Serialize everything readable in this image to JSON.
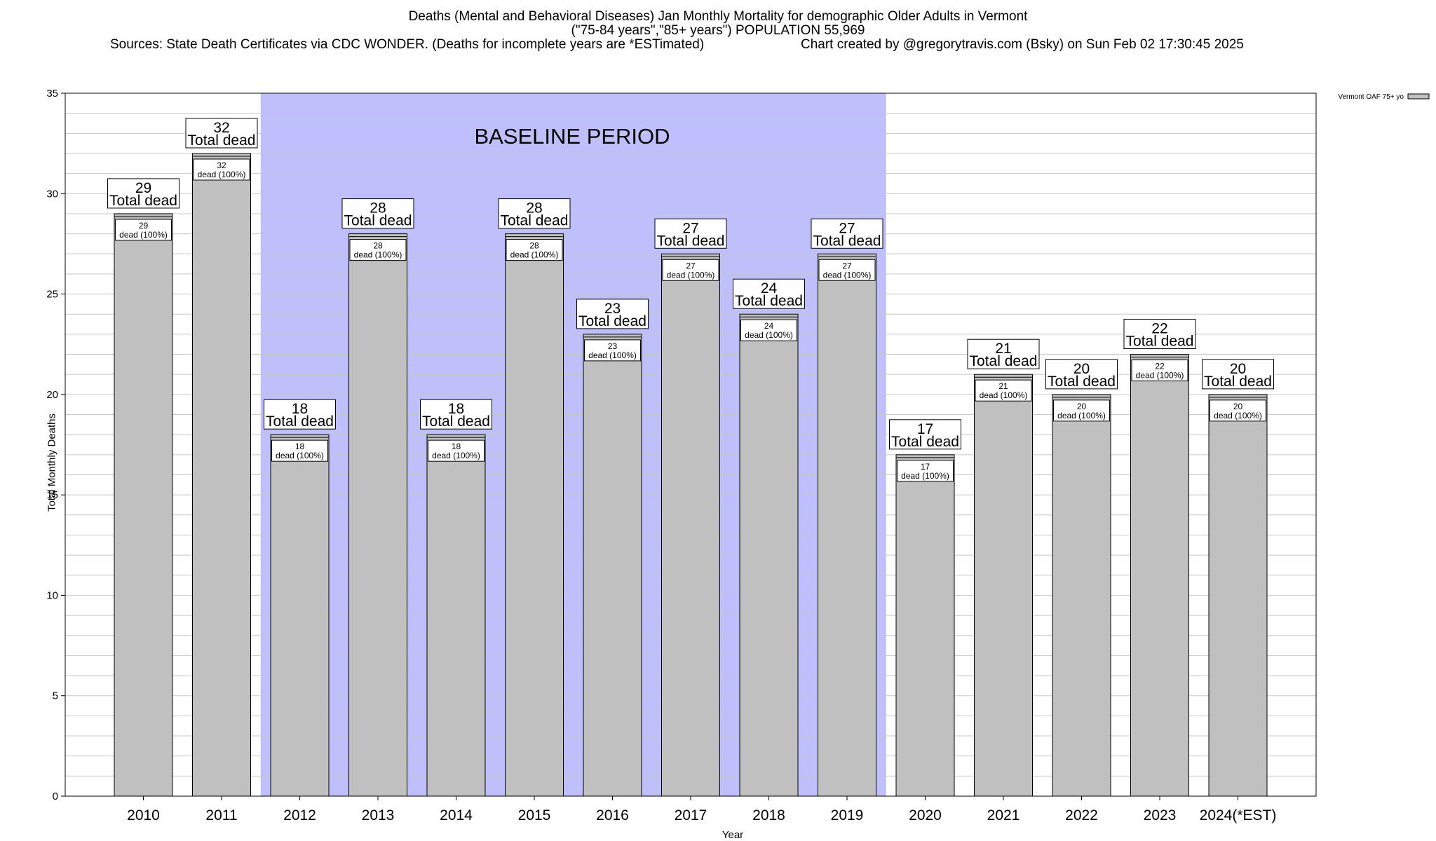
{
  "title": {
    "line1": "Deaths (Mental and Behavioral Diseases) Jan Monthly Mortality for demographic Older Adults in Vermont",
    "line2": "(\"75-84 years\",\"85+ years\") POPULATION 55,969",
    "line3_left": "Sources: State Death Certificates via CDC WONDER. (Deaths for incomplete years are *ESTimated)",
    "line3_right": "Chart created by @gregorytravis.com (Bsky) on Sun Feb 02 17:30:45 2025"
  },
  "chart_data": {
    "type": "bar",
    "xlabel": "Year",
    "ylabel": "Total Monthly Deaths",
    "ylim": [
      0,
      35
    ],
    "yticks": [
      0,
      5,
      10,
      15,
      20,
      25,
      30,
      35
    ],
    "grid": true,
    "legend": {
      "placement": "top-right",
      "label": "Vermont OAF 75+ yo"
    },
    "categories": [
      "2010",
      "2011",
      "2012",
      "2013",
      "2014",
      "2015",
      "2016",
      "2017",
      "2018",
      "2019",
      "2020",
      "2021",
      "2022",
      "2023",
      "2024(*EST)"
    ],
    "series": [
      {
        "name": "Vermont OAF 75+ yo",
        "values": [
          29,
          32,
          18,
          28,
          18,
          28,
          23,
          27,
          24,
          27,
          17,
          21,
          20,
          22,
          20
        ]
      }
    ],
    "total_label": "Total dead",
    "inner_label": "dead (100%)",
    "baseline": {
      "label": "BASELINE PERIOD",
      "from": "2012",
      "to": "2019"
    },
    "colors": {
      "bar": "#c0c0c0",
      "baseline": "#bfbffb",
      "grid": "#c8c8c8"
    }
  }
}
